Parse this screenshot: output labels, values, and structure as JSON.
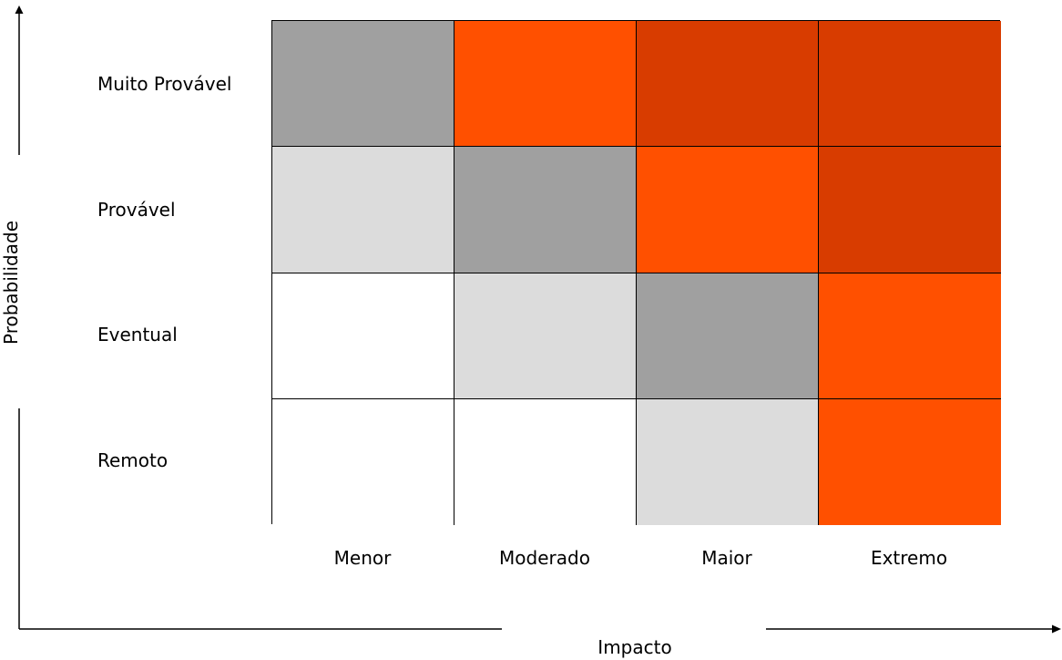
{
  "matrix": {
    "y_axis_title": "Probabilidade",
    "x_axis_title": "Impacto",
    "rows": [
      "Muito Provável",
      "Provável",
      "Eventual",
      "Remoto"
    ],
    "columns": [
      "Menor",
      "Moderado",
      "Maior",
      "Extremo"
    ],
    "levels": {
      "none": "#ffffff",
      "low": "#dcdcdc",
      "medium": "#a0a0a0",
      "high": "#ff5000",
      "extreme": "#d83c00"
    },
    "cells": [
      [
        "medium",
        "high",
        "extreme",
        "extreme"
      ],
      [
        "low",
        "medium",
        "high",
        "extreme"
      ],
      [
        "none",
        "low",
        "medium",
        "high"
      ],
      [
        "none",
        "none",
        "low",
        "high"
      ]
    ]
  }
}
